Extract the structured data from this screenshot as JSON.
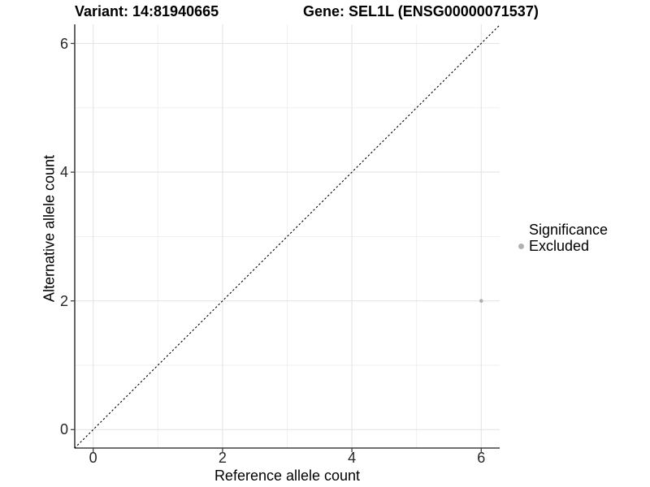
{
  "chart_data": {
    "type": "scatter",
    "title_left": "Variant: 14:81940665",
    "title_right": "Gene: SEL1L (ENSG00000071537)",
    "xlabel": "Reference allele count",
    "ylabel": "Alternative allele count",
    "xlim": [
      -0.29,
      6.29
    ],
    "ylim": [
      -0.29,
      6.29
    ],
    "xticks": [
      0,
      2,
      4,
      6
    ],
    "yticks": [
      0,
      2,
      4,
      6
    ],
    "xminor": [
      1,
      3,
      5
    ],
    "yminor": [
      1,
      3,
      5
    ],
    "grid": true,
    "identity_line": {
      "style": "dashed",
      "equation": "y = x",
      "color": "#000000"
    },
    "points": [
      {
        "x": 6,
        "y": 2,
        "significance": "Excluded"
      }
    ],
    "legend": {
      "title": "Significance",
      "position": "right",
      "entries": [
        {
          "label": "Excluded",
          "color": "#b1b1b1"
        }
      ]
    }
  },
  "style": {
    "background": "#ffffff",
    "grid_major_color": "#e4e4e4",
    "grid_minor_color": "#efefef",
    "axis_color": "#404040",
    "tick_label_color": "#262626",
    "point_color": "#b1b1b1",
    "point_radius": 2.3
  }
}
